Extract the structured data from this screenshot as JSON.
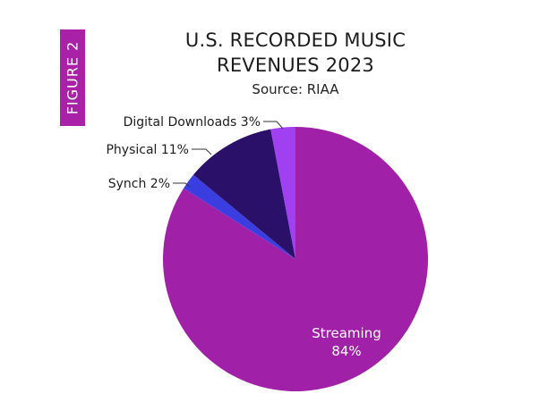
{
  "figure_label": "FIGURE 2",
  "colors": {
    "accent": "#a821a7",
    "streaming": "#a020a8",
    "synch": "#3a3de0",
    "physical": "#2a1068",
    "digital_downloads": "#a040f0"
  },
  "chart_data": {
    "type": "pie",
    "title_line1": "U.S. RECORDED MUSIC",
    "title_line2": "REVENUES 2023",
    "subtitle": "Source: RIAA",
    "slices": [
      {
        "name": "Streaming",
        "value": 84,
        "label": "Streaming",
        "value_label": "84%",
        "color_key": "streaming"
      },
      {
        "name": "Synch",
        "value": 2,
        "label": "Synch 2%",
        "color_key": "synch"
      },
      {
        "name": "Physical",
        "value": 11,
        "label": "Physical 11%",
        "color_key": "physical"
      },
      {
        "name": "Digital Downloads",
        "value": 3,
        "label": "Digital Downloads 3%",
        "color_key": "digital_downloads"
      }
    ]
  }
}
